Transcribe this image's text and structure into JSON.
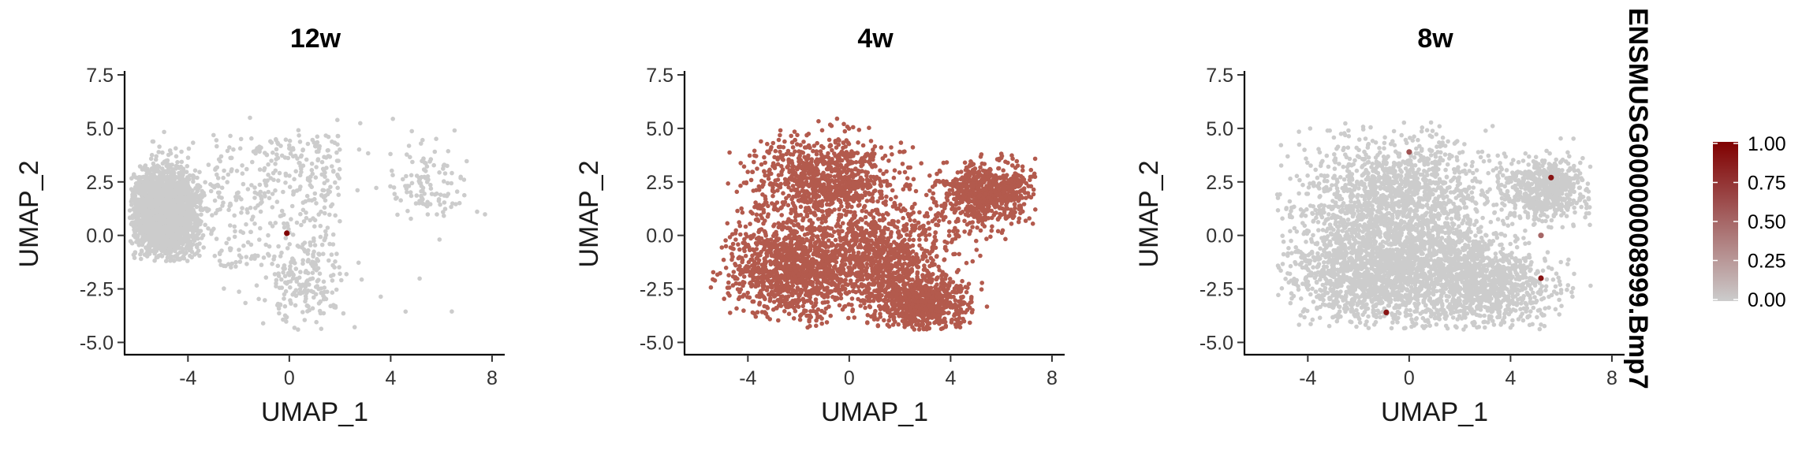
{
  "chart_data": {
    "type": "scatter",
    "feature": "ENSMUSG00000008999.Bmp7",
    "colors": {
      "low": "#cccccc",
      "high": "#800000",
      "expressed_4w": "#b35a4d"
    },
    "shared_axes": {
      "xlabel": "UMAP_1",
      "ylabel": "UMAP_2",
      "xlim": [
        -6.5,
        8.5
      ],
      "ylim": [
        -5.5,
        7.5
      ],
      "xticks": [
        -4,
        0,
        4,
        8
      ],
      "yticks": [
        -5.0,
        -2.5,
        0.0,
        2.5,
        5.0,
        7.5
      ],
      "xtick_labels": [
        "-4",
        "0",
        "4",
        "8"
      ],
      "ytick_labels": [
        "-5.0",
        "-2.5",
        "0.0",
        "2.5",
        "5.0",
        "7.5"
      ]
    },
    "legend": {
      "title": "ENSMUSG00000008999.Bmp7",
      "placement": "right",
      "range": [
        0,
        1
      ],
      "breaks": [
        1.0,
        0.75,
        0.5,
        0.25,
        0.0
      ],
      "break_labels": [
        "1.00",
        "0.75",
        "0.50",
        "0.25",
        "0.00"
      ]
    },
    "panels": [
      {
        "title": "12w",
        "point_color": "#cccccc",
        "highlighted_points": [
          {
            "x": -0.1,
            "y": 0.1,
            "value": 1.0
          }
        ]
      },
      {
        "title": "4w",
        "point_color": "#b35a4d",
        "highlighted_points": []
      },
      {
        "title": "8w",
        "point_color": "#cccccc",
        "highlighted_points": [
          {
            "x": 0.0,
            "y": 3.9,
            "value": 0.6
          },
          {
            "x": 5.6,
            "y": 2.7,
            "value": 0.9
          },
          {
            "x": 5.2,
            "y": 0.0,
            "value": 0.5
          },
          {
            "x": 5.2,
            "y": -2.0,
            "value": 0.9
          },
          {
            "x": -0.9,
            "y": -3.6,
            "value": 0.9
          }
        ]
      }
    ]
  }
}
